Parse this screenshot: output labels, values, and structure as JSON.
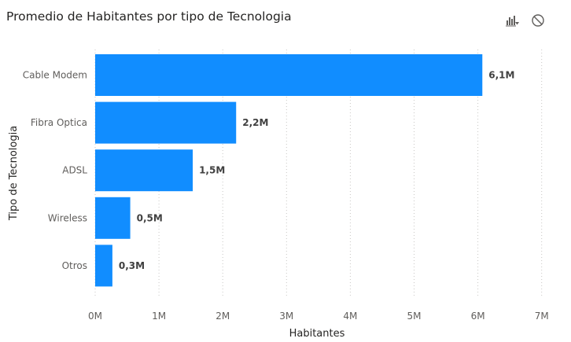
{
  "visual": {
    "title": "Promedio de Habitantes por tipo de Tecnologia",
    "icons": [
      "drill-chart-icon",
      "no-filter-icon"
    ]
  },
  "colors": {
    "bar": "#118dff",
    "grid": "#c8c6c4",
    "text": "#605e5c"
  },
  "chart_data": {
    "type": "bar",
    "orientation": "horizontal",
    "title": "Promedio de Habitantes por tipo de Tecnologia",
    "xlabel": "Habitantes",
    "ylabel": "Tipo de Tecnologia",
    "categories": [
      "Cable Modem",
      "Fibra Optica",
      "ADSL",
      "Wireless",
      "Otros"
    ],
    "values": [
      6.07,
      2.21,
      1.53,
      0.55,
      0.27
    ],
    "data_labels": [
      "6,1M",
      "2,2M",
      "1,5M",
      "0,5M",
      "0,3M"
    ],
    "xlim": [
      0,
      7
    ],
    "x_ticks": [
      0,
      1,
      2,
      3,
      4,
      5,
      6,
      7
    ],
    "x_tick_labels": [
      "0M",
      "1M",
      "2M",
      "3M",
      "4M",
      "5M",
      "6M",
      "7M"
    ],
    "grid": "vertical-dotted",
    "legend": "none"
  }
}
